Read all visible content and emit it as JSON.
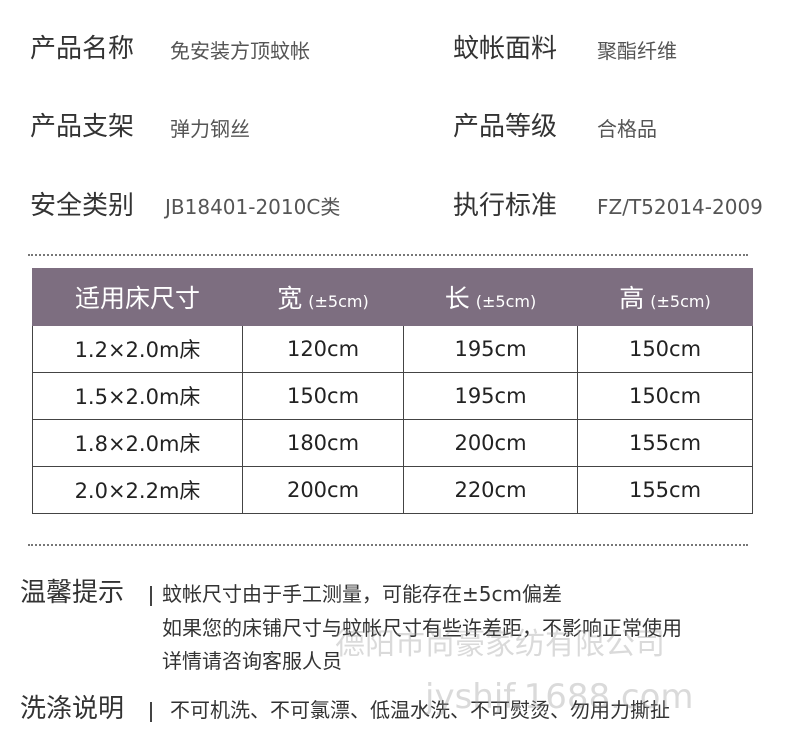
{
  "specs": [
    {
      "label": "产品名称",
      "value": "免安装方顶蚊帐"
    },
    {
      "label": "蚊帐面料",
      "value": "聚酯纤维"
    },
    {
      "label": "产品支架",
      "value": "弹力钢丝"
    },
    {
      "label": "产品等级",
      "value": "合格品"
    },
    {
      "label": "安全类别",
      "value": "JB18401-2010C类"
    },
    {
      "label": "执行标准",
      "value": "FZ/T52014-2009"
    }
  ],
  "table": {
    "header": [
      {
        "text": "适用床尺寸"
      },
      {
        "text": "宽",
        "note": "(±5cm)"
      },
      {
        "text": "长",
        "note": "(±5cm)"
      },
      {
        "text": "高",
        "note": "(±5cm)"
      }
    ],
    "rows": [
      [
        "1.2×2.0m床",
        "120cm",
        "195cm",
        "150cm"
      ],
      [
        "1.5×2.0m床",
        "150cm",
        "195cm",
        "150cm"
      ],
      [
        "1.8×2.0m床",
        "180cm",
        "200cm",
        "155cm"
      ],
      [
        "2.0×2.2m床",
        "200cm",
        "220cm",
        "155cm"
      ]
    ]
  },
  "notes": {
    "tips_title": "温馨提示",
    "tips": [
      "蚊帐尺寸由于手工测量，可能存在±5cm偏差",
      "如果您的床铺尺寸与蚊帐尺寸有些许差距，不影响正常使用",
      "详情请咨询客服人员"
    ],
    "wash_title": "洗涤说明",
    "wash": "不可机洗、不可氯漂、低温水洗、不可熨烫、勿用力撕扯"
  },
  "watermark": [
    "德阳市尚豪家纺有限公司",
    "jyshjf.1688.com"
  ]
}
